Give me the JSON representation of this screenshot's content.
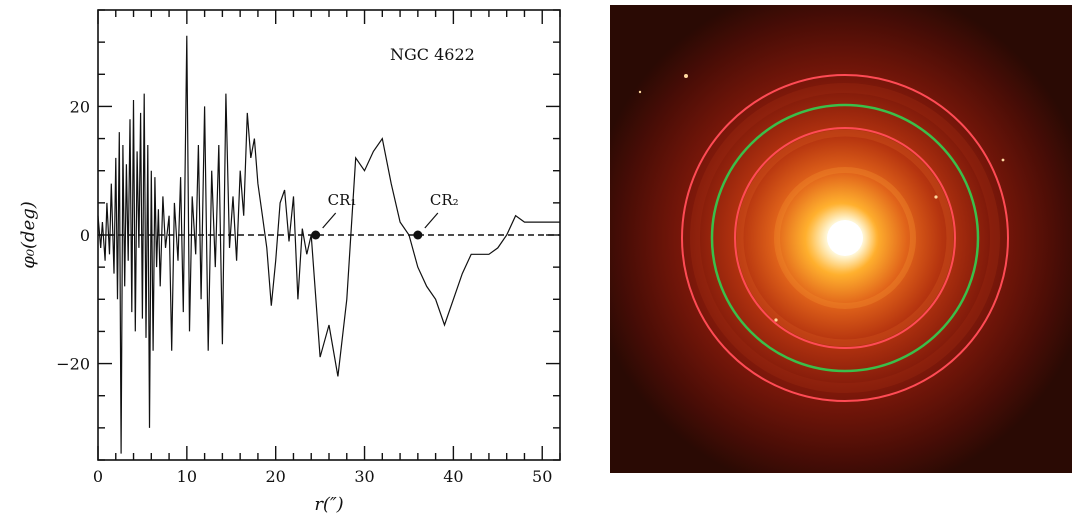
{
  "chart_data": {
    "type": "line",
    "title": "",
    "annotation_label": "NGC 4622",
    "xlabel": "r(″)",
    "ylabel": "φ₀(deg)",
    "xlim": [
      0,
      52
    ],
    "ylim": [
      -35,
      35
    ],
    "xticks": [
      0,
      10,
      20,
      30,
      40,
      50
    ],
    "yticks": [
      -20,
      0,
      20
    ],
    "xtick_labels": [
      "0",
      "10",
      "20",
      "30",
      "40",
      "50"
    ],
    "ytick_labels": [
      "−20",
      "0",
      "20"
    ],
    "grid": false,
    "reference_line": {
      "y": 0,
      "style": "dashed"
    },
    "series": [
      {
        "x": [
          0,
          0.3,
          0.5,
          0.8,
          1.0,
          1.3,
          1.5,
          1.8,
          2.0,
          2.2,
          2.4,
          2.6,
          2.8,
          3.0,
          3.2,
          3.4,
          3.6,
          3.8,
          4.0,
          4.2,
          4.4,
          4.6,
          4.8,
          5.0,
          5.2,
          5.4,
          5.6,
          5.8,
          6.0,
          6.2,
          6.4,
          6.6,
          6.8,
          7.0,
          7.3,
          7.6,
          8.0,
          8.3,
          8.6,
          9.0,
          9.3,
          9.6,
          10.0,
          10.3,
          10.6,
          11.0,
          11.3,
          11.6,
          12.0,
          12.4,
          12.8,
          13.2,
          13.6,
          14.0,
          14.4,
          14.8,
          15.2,
          15.6,
          16.0,
          16.4,
          16.8,
          17.2,
          17.6,
          18.0,
          18.5,
          19.0,
          19.5,
          20.0,
          20.5,
          21.0,
          21.5,
          22.0,
          22.5,
          23.0,
          23.5,
          24.0,
          25.0,
          26.0,
          27.0,
          28.0,
          29.0,
          30.0,
          31.0,
          32.0,
          33.0,
          34.0,
          35.0,
          36.0,
          37.0,
          38.0,
          39.0,
          40.0,
          41.0,
          42.0,
          43.0,
          44.0,
          45.0,
          46.0,
          47.0,
          48.0,
          49.0,
          50.0,
          51.0,
          52.0
        ],
        "y": [
          3,
          -2,
          2,
          -4,
          5,
          -3,
          8,
          -6,
          12,
          -10,
          16,
          -34,
          14,
          -8,
          11,
          -4,
          18,
          -12,
          21,
          -15,
          13,
          -2,
          19,
          -13,
          22,
          -16,
          14,
          -30,
          10,
          -18,
          9,
          -5,
          4,
          -8,
          6,
          -2,
          3,
          -18,
          5,
          -4,
          9,
          -12,
          31,
          -15,
          6,
          -3,
          14,
          -10,
          20,
          -18,
          10,
          -5,
          14,
          -17,
          22,
          -2,
          6,
          -4,
          10,
          3,
          19,
          12,
          15,
          8,
          3,
          -2,
          -11,
          -4,
          5,
          7,
          -1,
          6,
          -10,
          1,
          -3,
          0,
          -19,
          -14,
          -22,
          -10,
          12,
          10,
          13,
          15,
          8,
          2,
          0,
          -5,
          -8,
          -10,
          -14,
          -10,
          -6,
          -3,
          -3,
          -3,
          -2,
          0,
          3,
          2,
          2,
          2,
          2,
          2
        ],
        "points": [
          {
            "label": "CR₁",
            "x": 24.5,
            "y": 0
          },
          {
            "label": "CR₂",
            "x": 36,
            "y": 0
          }
        ]
      }
    ]
  },
  "image_panel": {
    "description_colors": {
      "background": "#2a0a04",
      "core": "#ffffff",
      "inner_glow": "#ffb02e",
      "mid_glow": "#e0631a",
      "outer_glow": "#8a1a0a",
      "ring_outer": "#ff4b55",
      "ring_middle": "#3bbf4a",
      "ring_inner": "#ff4b55"
    }
  }
}
